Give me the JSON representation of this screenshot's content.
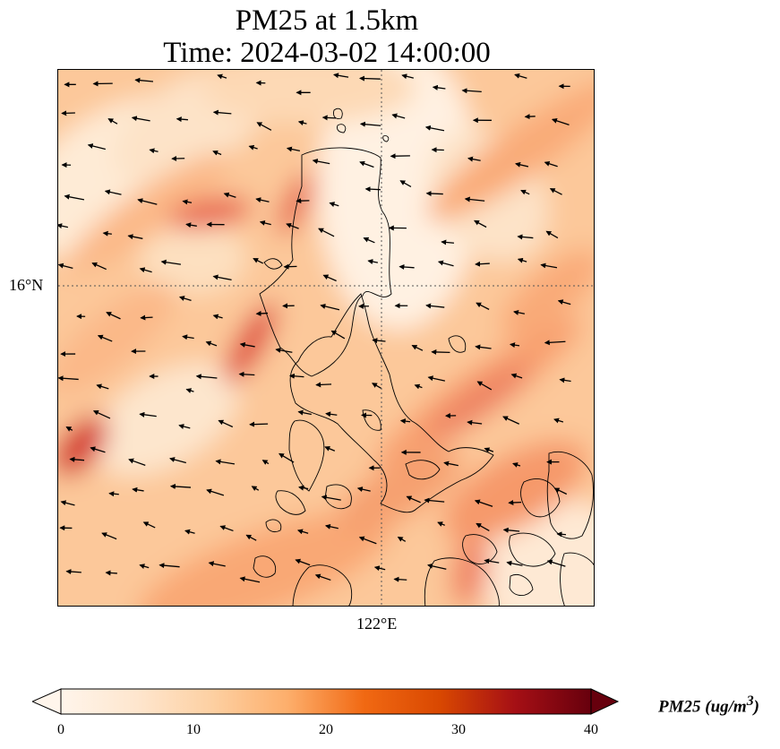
{
  "title": {
    "line1": "PM25 at 1.5km",
    "line2": "Time: 2024-03-02 14:00:00"
  },
  "axes": {
    "lat_label": "16°N",
    "lon_label": "122°E"
  },
  "colorbar": {
    "label": "PM25 (ug/m",
    "label_superscript": "3",
    "label_suffix": ")",
    "min": 0,
    "max": 40,
    "ticks": [
      "0",
      "10",
      "20",
      "30",
      "40"
    ],
    "extend": "both",
    "colormap": [
      "#fff5eb",
      "#fee6ce",
      "#fdd0a2",
      "#fdae6b",
      "#f16913",
      "#d94801",
      "#a50f15",
      "#67000d"
    ]
  },
  "map": {
    "gridlines": "dotted",
    "coastlines": true,
    "wind_vectors": true
  }
}
